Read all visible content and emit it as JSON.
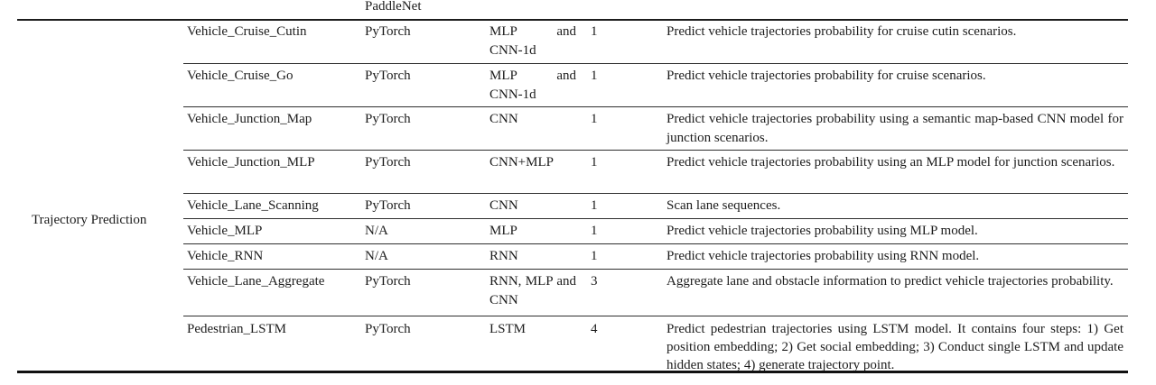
{
  "table": {
    "partial_top_row": {
      "framework": "PaddleNet"
    },
    "category": "Trajectory Prediction",
    "rows": [
      {
        "model": "Vehicle_Cruise_Cutin",
        "framework": "PyTorch",
        "architecture": "MLP and CNN-1d",
        "count": "1",
        "description": "Predict vehicle trajectories probability for cruise cutin scenarios."
      },
      {
        "model": "Vehicle_Cruise_Go",
        "framework": "PyTorch",
        "architecture": "MLP and CNN-1d",
        "count": "1",
        "description": "Predict vehicle trajectories probability for cruise scenarios."
      },
      {
        "model": "Vehicle_Junction_Map",
        "framework": "PyTorch",
        "architecture": "CNN",
        "count": "1",
        "description": "Predict vehicle trajectories probability using a semantic map-based CNN model for junction scenarios."
      },
      {
        "model": "Vehicle_Junction_MLP",
        "framework": "PyTorch",
        "architecture": "CNN+MLP",
        "count": "1",
        "description": "Predict vehicle trajectories probability using an MLP model for junction scenarios."
      },
      {
        "model": "Vehicle_Lane_Scanning",
        "framework": "PyTorch",
        "architecture": "CNN",
        "count": "1",
        "description": "Scan lane sequences."
      },
      {
        "model": "Vehicle_MLP",
        "framework": "N/A",
        "architecture": "MLP",
        "count": "1",
        "description": "Predict vehicle trajectories probability using MLP model."
      },
      {
        "model": "Vehicle_RNN",
        "framework": "N/A",
        "architecture": "RNN",
        "count": "1",
        "description": "Predict vehicle trajectories probability using RNN model."
      },
      {
        "model": "Vehicle_Lane_Aggregate",
        "framework": "PyTorch",
        "architecture": "RNN, MLP and CNN",
        "count": "3",
        "description": "Aggregate lane and obstacle information to predict vehicle trajectories probability."
      },
      {
        "model": "Pedestrian_LSTM",
        "framework": "PyTorch",
        "architecture": "LSTM",
        "count": "4",
        "description": "Predict pedestrian trajectories using LSTM model. It contains four steps: 1) Get position embedding; 2) Get social embedding; 3) Conduct single LSTM and update hidden states; 4) generate trajectory point."
      }
    ]
  }
}
